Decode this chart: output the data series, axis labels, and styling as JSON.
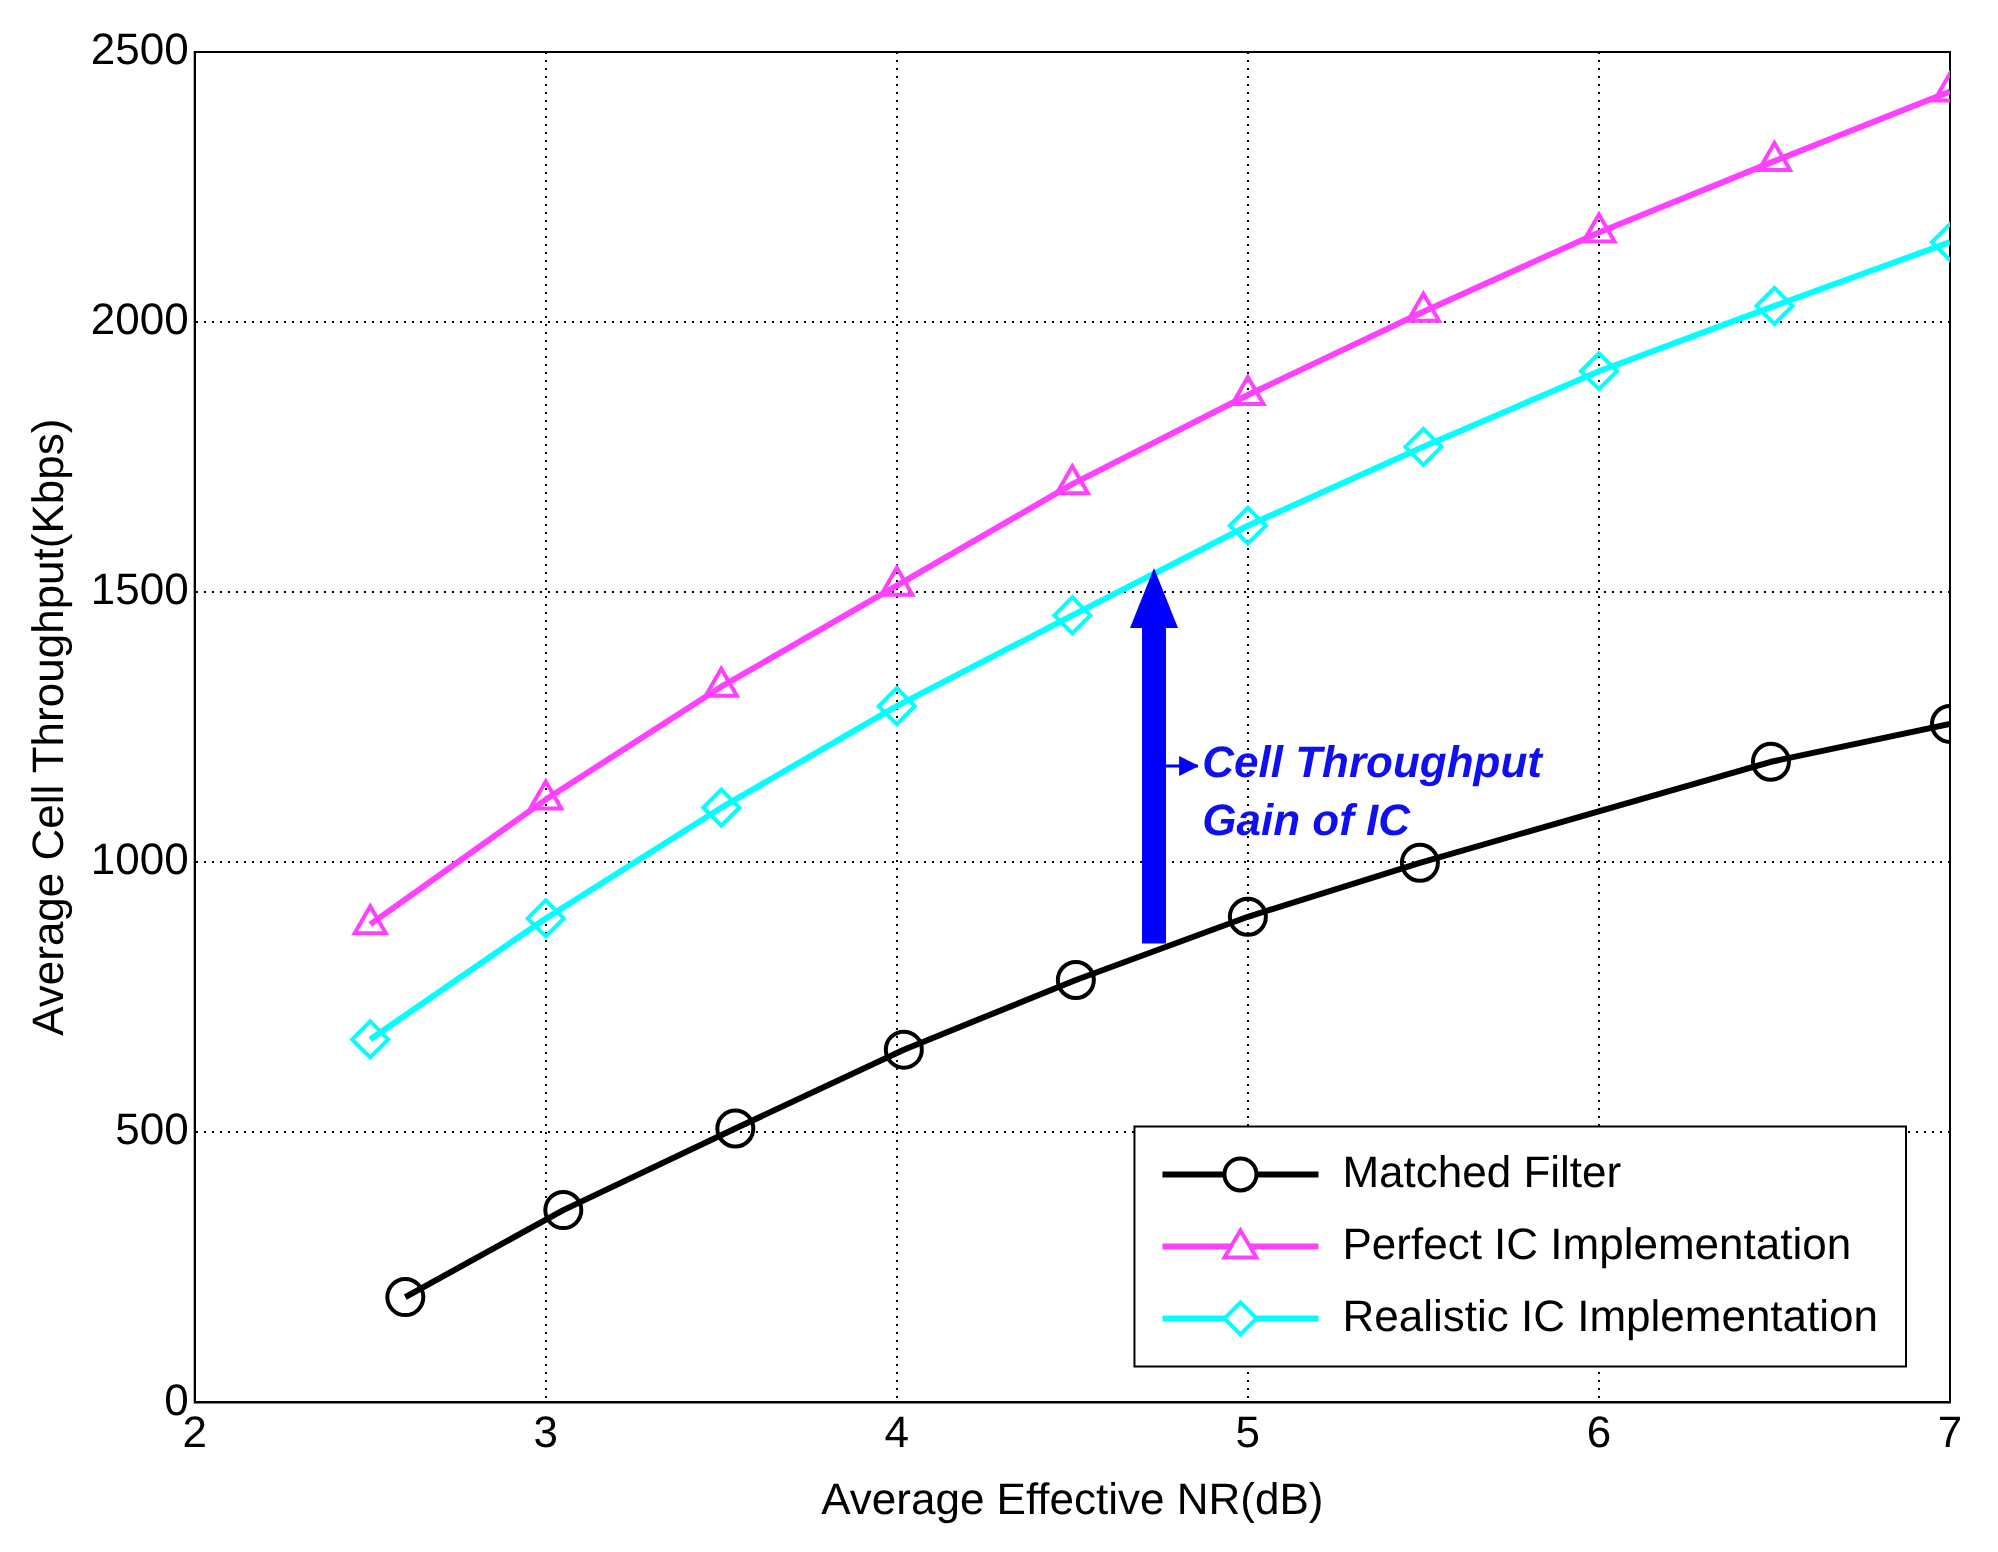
{
  "chart_data": {
    "type": "line",
    "xlabel": "Average Effective NR(dB)",
    "ylabel": "Average Cell Throughput(Kbps)",
    "xlim": [
      2,
      7
    ],
    "xticks": [
      2,
      3,
      4,
      5,
      6,
      7
    ],
    "ylim": [
      0,
      2500
    ],
    "yticks": [
      0,
      500,
      1000,
      1500,
      2000,
      2500
    ],
    "grid": true,
    "legend": "bottom right",
    "line_style": "solid",
    "annotations": [
      "Cell Throughput Gain of IC"
    ],
    "series": [
      {
        "name": "Matched Filter",
        "color": "#000000",
        "marker": "circle",
        "x": [
          2.6,
          3.05,
          3.54,
          4.02,
          4.51,
          5.0,
          5.49,
          6.49,
          7.0
        ],
        "values": [
          195,
          356,
          507,
          653,
          782,
          899,
          999,
          1186,
          1256
        ]
      },
      {
        "name": "Perfect IC Implementation",
        "color": "#ff40ff",
        "marker": "triangle",
        "x": [
          2.5,
          3,
          3.5,
          4,
          4.5,
          5,
          5.5,
          6,
          6.5,
          7
        ],
        "values": [
          885,
          1116,
          1325,
          1512,
          1700,
          1865,
          2019,
          2166,
          2298,
          2427
        ]
      },
      {
        "name": "Realistic IC Implementation",
        "color": "#00ffff",
        "marker": "diamond",
        "x": [
          2.5,
          3,
          3.5,
          4,
          4.5,
          5,
          5.5,
          6,
          6.5,
          7
        ],
        "values": [
          672,
          896,
          1101,
          1289,
          1457,
          1623,
          1769,
          1909,
          2030,
          2148
        ]
      }
    ]
  }
}
